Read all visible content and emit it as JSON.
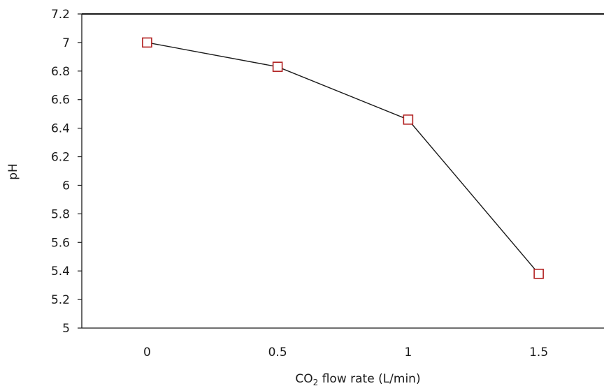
{
  "chart_data": {
    "type": "line",
    "title": "",
    "xlabel": {
      "prefix": "CO",
      "subscript": "2",
      "suffix": " flow rate (L/min)"
    },
    "ylabel": "pH",
    "xlim": [
      -0.25,
      1.75
    ],
    "ylim": [
      5,
      7.2
    ],
    "x_ticks": [
      0,
      0.5,
      1,
      1.5
    ],
    "x_tick_labels": [
      "0",
      "0.5",
      "1",
      "1.5"
    ],
    "y_ticks": [
      5,
      5.2,
      5.4,
      5.6,
      5.8,
      6,
      6.2,
      6.4,
      6.6,
      6.8,
      7,
      7.2
    ],
    "y_tick_labels": [
      "5",
      "5.2",
      "5.4",
      "5.6",
      "5.8",
      "6",
      "6.2",
      "6.4",
      "6.6",
      "6.8",
      "7",
      "7.2"
    ],
    "grid": false,
    "legend": "none",
    "series": [
      {
        "x": [
          0,
          0.5,
          1,
          1.5
        ],
        "values": [
          7.0,
          6.83,
          6.46,
          5.38
        ],
        "marker": "hollow-square",
        "line_color": "#1a1a1a",
        "marker_color": "#b22222"
      }
    ]
  }
}
